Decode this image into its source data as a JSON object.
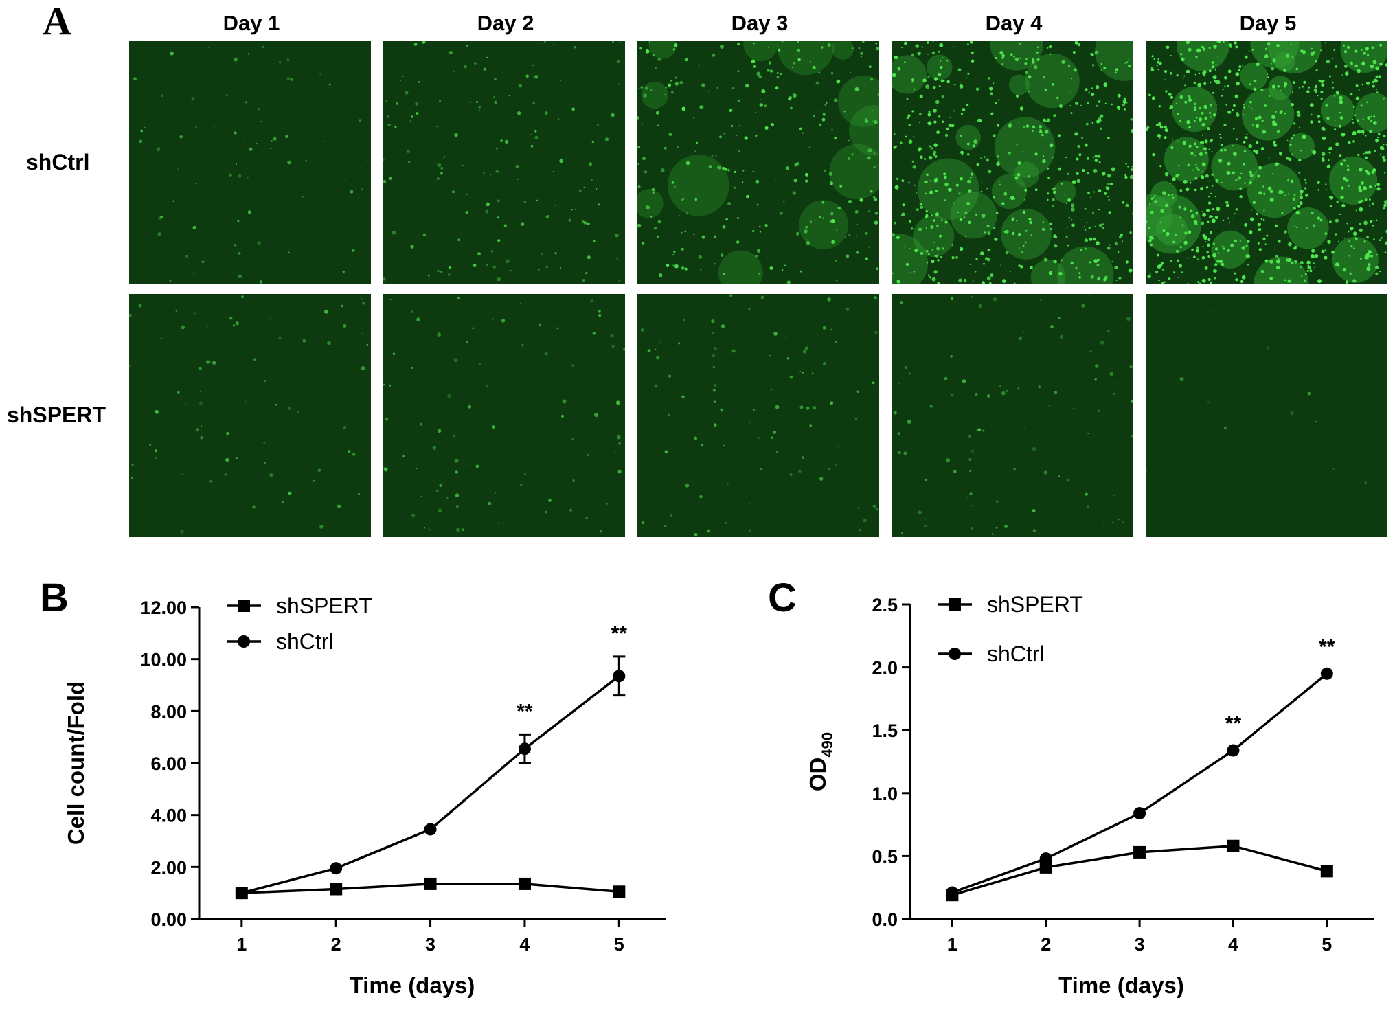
{
  "panel_a": {
    "letter": "A",
    "columns": [
      "Day 1",
      "Day 2",
      "Day 3",
      "Day 4",
      "Day 5"
    ],
    "rows": [
      "shCtrl",
      "shSPERT"
    ],
    "image_colors": {
      "background": "#0d3a0f",
      "cells": "#4ee64e"
    }
  },
  "chart_data": [
    {
      "type": "line",
      "panel": "B",
      "x": [
        1,
        2,
        3,
        4,
        5
      ],
      "xlabel": "Time (days)",
      "ylabel": "Cell count/Fold",
      "ylim": [
        0,
        12
      ],
      "yticks": [
        "0.00",
        "2.00",
        "4.00",
        "6.00",
        "8.00",
        "10.00",
        "12.00"
      ],
      "xticks": [
        "1",
        "2",
        "3",
        "4",
        "5"
      ],
      "legend": "top-left",
      "series": [
        {
          "name": "shSPERT",
          "marker": "square",
          "values": [
            1.0,
            1.15,
            1.35,
            1.35,
            1.05
          ],
          "errors": [
            0.05,
            0.1,
            0.1,
            0.1,
            0.08
          ]
        },
        {
          "name": "shCtrl",
          "marker": "circle",
          "values": [
            1.0,
            1.95,
            3.45,
            6.55,
            9.35
          ],
          "errors": [
            0.05,
            0.1,
            0.15,
            0.55,
            0.75
          ]
        }
      ],
      "annotations": [
        {
          "x": 4,
          "text": "**"
        },
        {
          "x": 5,
          "text": "**"
        }
      ]
    },
    {
      "type": "line",
      "panel": "C",
      "x": [
        1,
        2,
        3,
        4,
        5
      ],
      "xlabel": "Time  (days)",
      "ylabel": "OD",
      "ylabel_sub": "490",
      "ylim": [
        0,
        2.5
      ],
      "yticks": [
        "0.0",
        "0.5",
        "1.0",
        "1.5",
        "2.0",
        "2.5"
      ],
      "xticks": [
        "1",
        "2",
        "3",
        "4",
        "5"
      ],
      "legend": "top-left",
      "series": [
        {
          "name": "shSPERT",
          "marker": "square",
          "values": [
            0.19,
            0.41,
            0.53,
            0.58,
            0.38
          ],
          "errors": [
            0.01,
            0.02,
            0.02,
            0.02,
            0.02
          ]
        },
        {
          "name": "shCtrl",
          "marker": "circle",
          "values": [
            0.21,
            0.48,
            0.84,
            1.34,
            1.95
          ],
          "errors": [
            0.01,
            0.02,
            0.02,
            0.03,
            0.03
          ]
        }
      ],
      "annotations": [
        {
          "x": 4,
          "text": "**"
        },
        {
          "x": 5,
          "text": "**"
        }
      ]
    }
  ]
}
